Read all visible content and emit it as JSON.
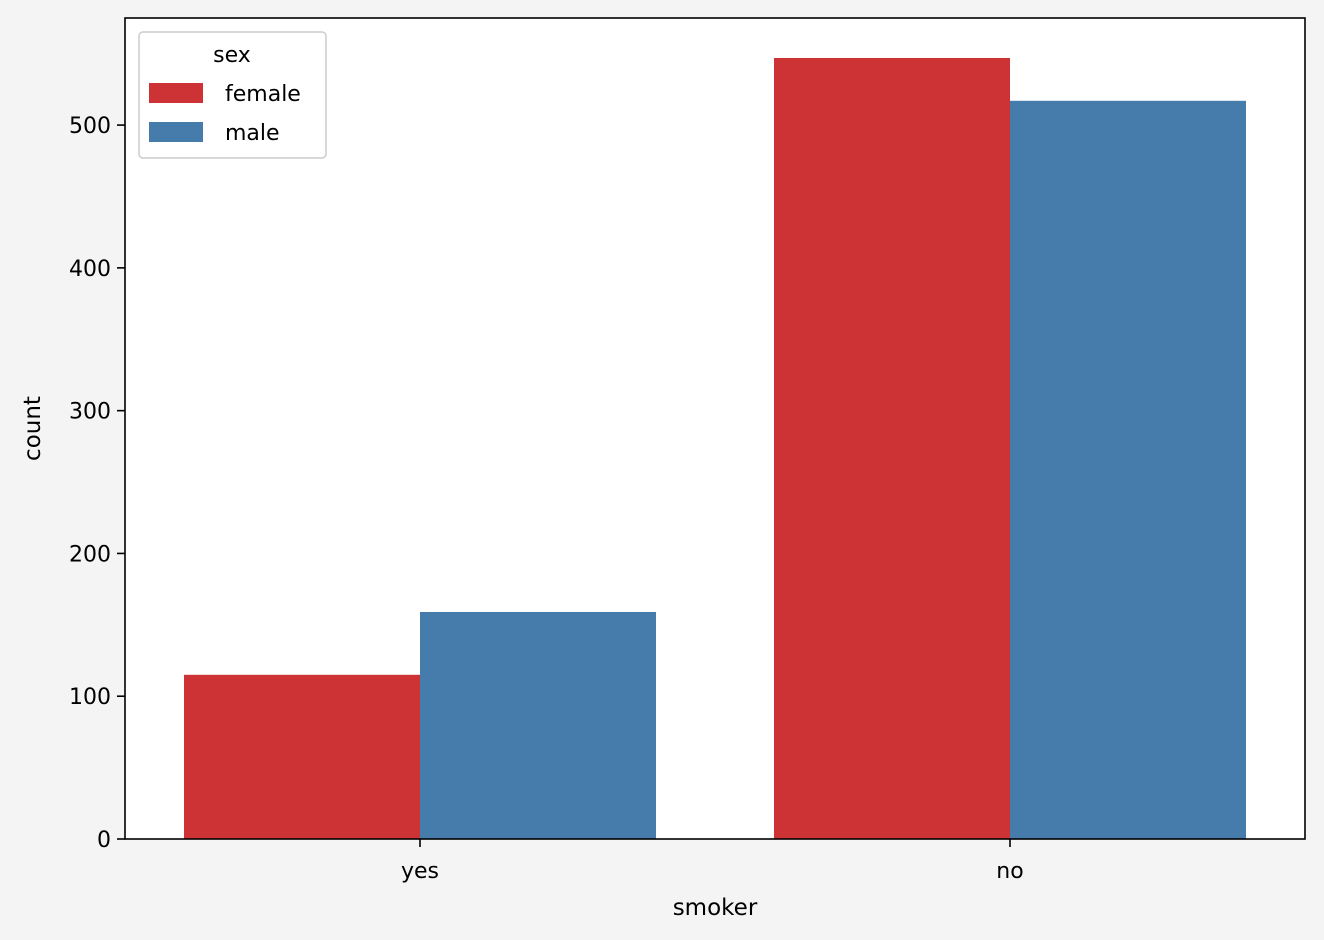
{
  "chart_data": {
    "type": "bar",
    "title": "",
    "xlabel": "smoker",
    "ylabel": "count",
    "categories": [
      "yes",
      "no"
    ],
    "series": [
      {
        "name": "female",
        "color": "#cd3234",
        "values": [
          115,
          547
        ]
      },
      {
        "name": "male",
        "color": "#467cab",
        "values": [
          159,
          517
        ]
      }
    ],
    "ylim": [
      0,
      575
    ],
    "yticks": [
      0,
      100,
      200,
      300,
      400,
      500
    ],
    "grid": false,
    "legend": {
      "title": "sex",
      "placement": "top-left"
    }
  }
}
